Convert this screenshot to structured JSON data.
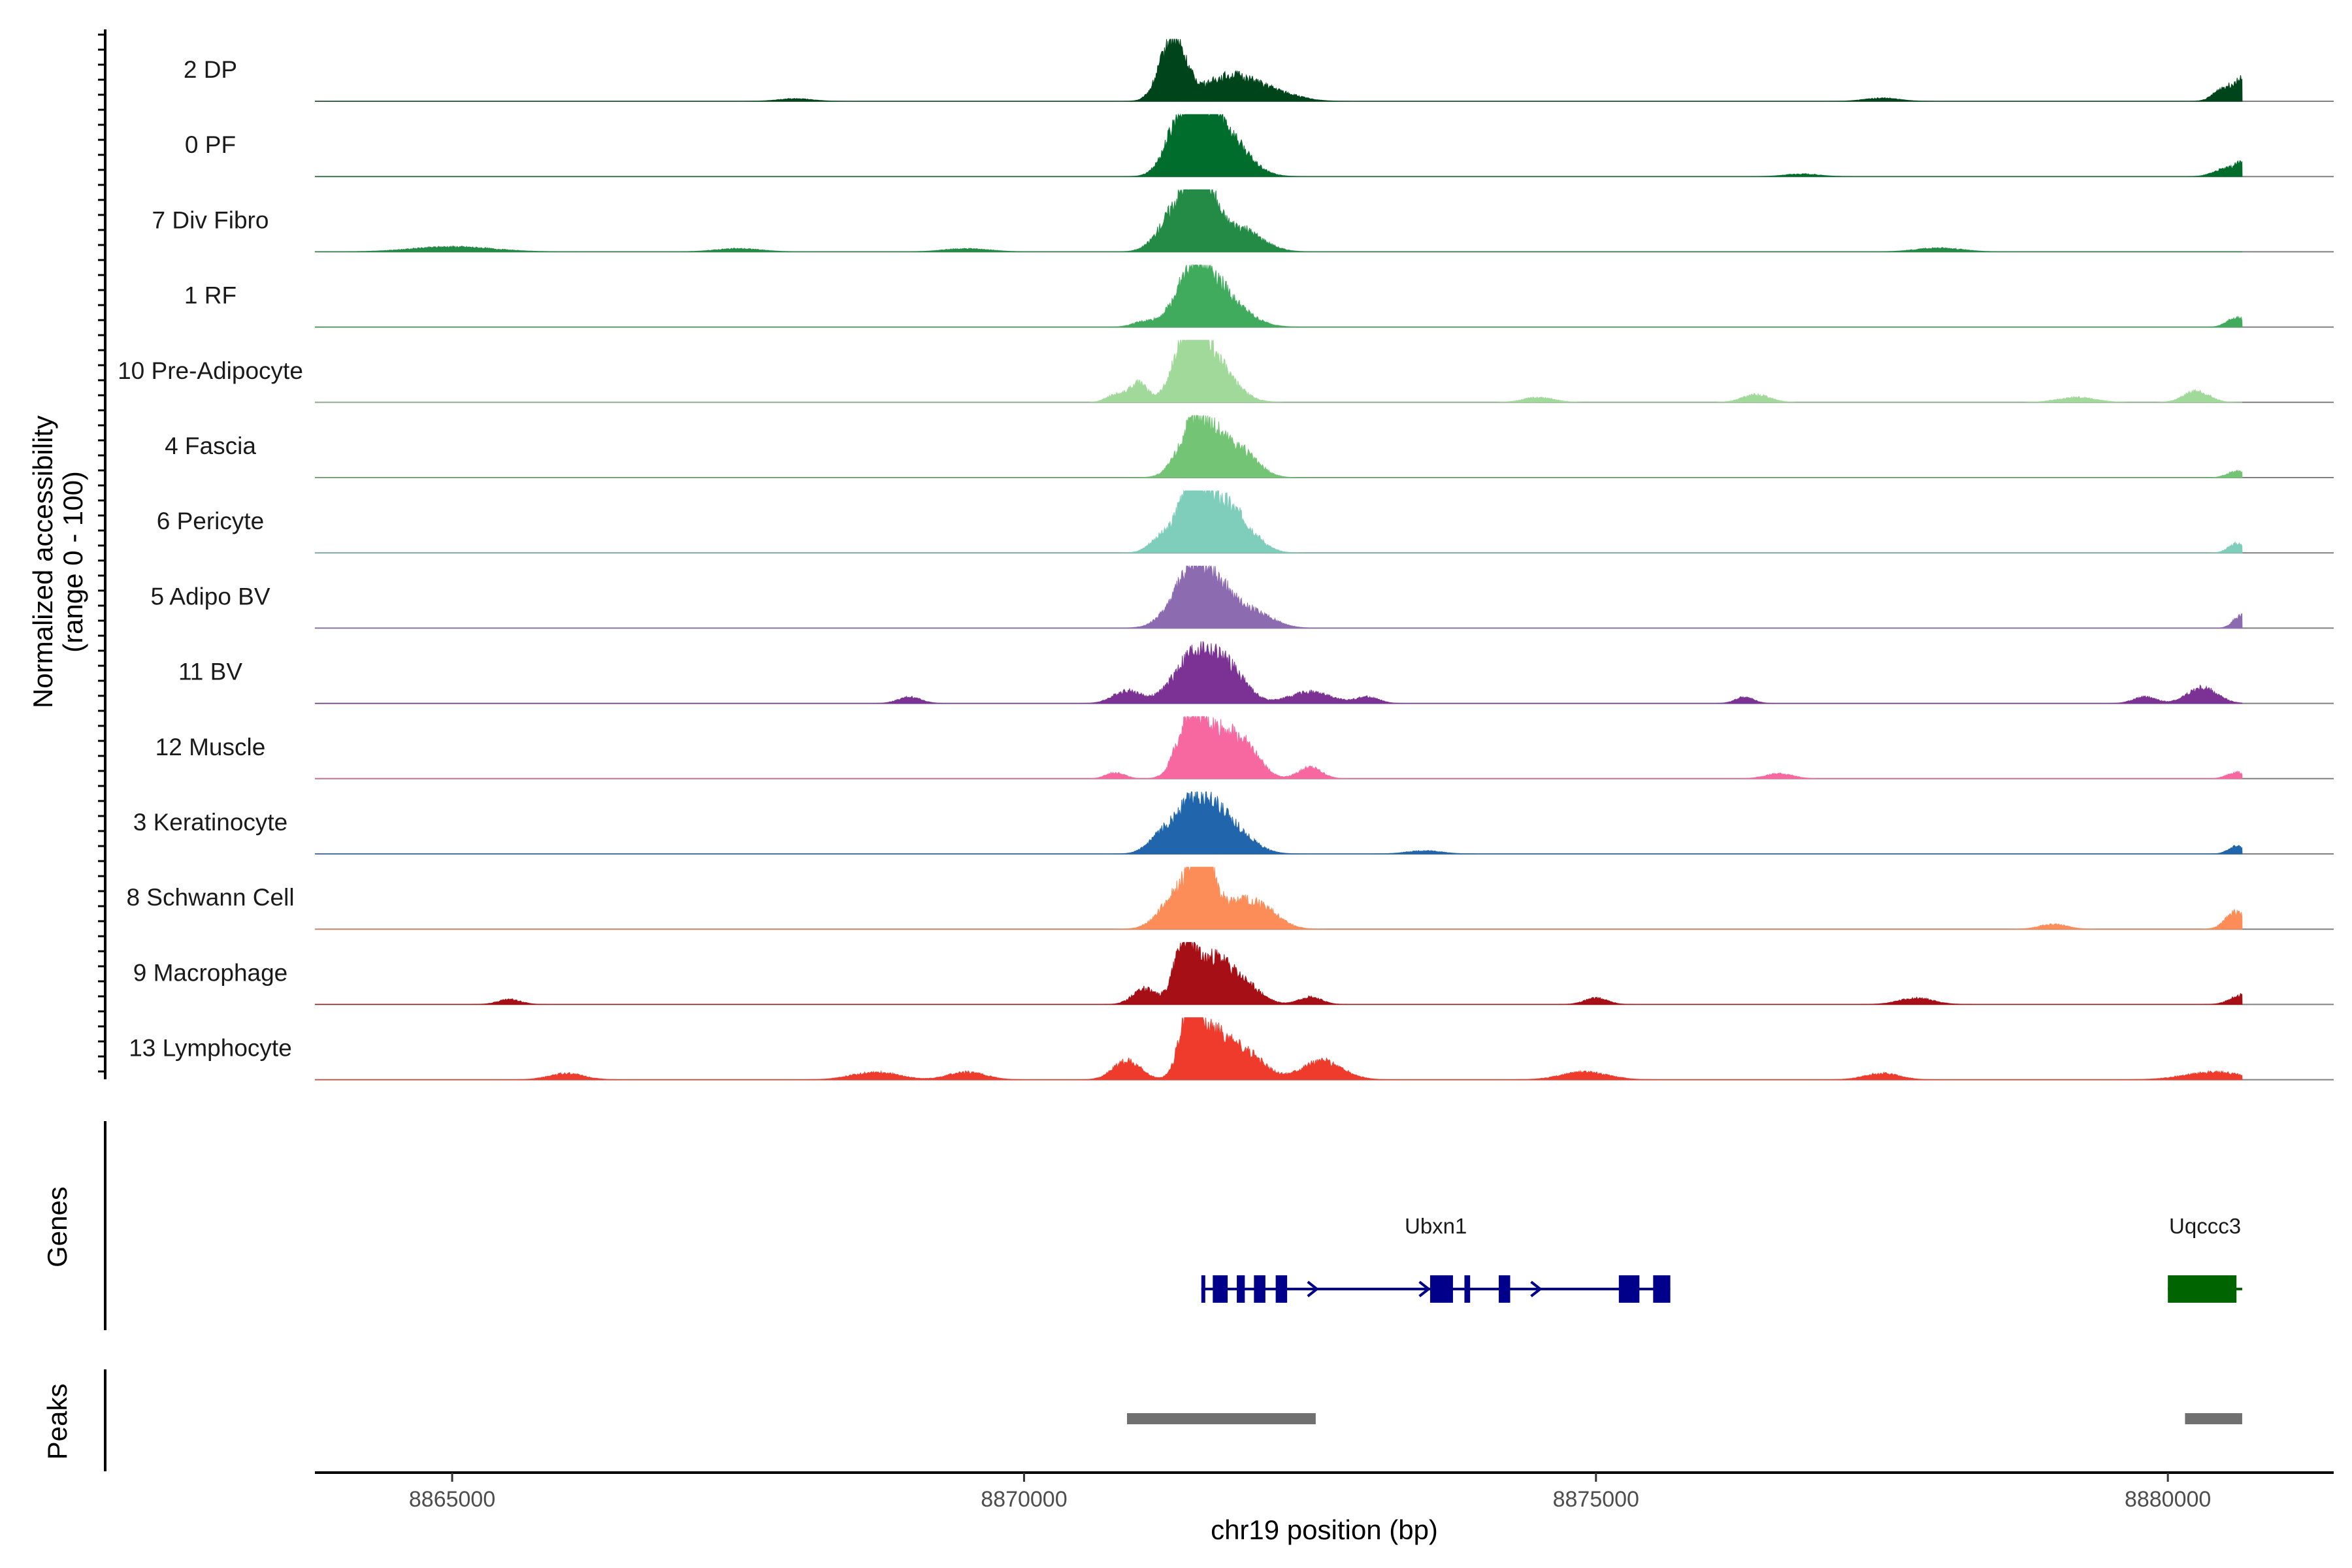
{
  "chart_data": {
    "type": "area",
    "title": "",
    "ylabel_line1": "Normalized accessibility",
    "ylabel_line2": "(range 0 - 100)",
    "xlabel": "chr19 position (bp)",
    "xlim": [
      8863800,
      8881450
    ],
    "ylim": [
      0,
      100
    ],
    "x_ticks": [
      8865000,
      8870000,
      8875000,
      8880000
    ],
    "x_tick_labels": [
      "8865000",
      "8870000",
      "8875000",
      "8880000"
    ],
    "tracks": [
      {
        "name": "2 DP",
        "color": "#00441b",
        "peaks": [
          [
            8871300,
            100,
            110
          ],
          [
            8871800,
            40,
            220
          ],
          [
            8872200,
            12,
            200
          ],
          [
            8880500,
            22,
            90
          ],
          [
            8880650,
            30,
            60
          ],
          [
            8877500,
            5,
            150
          ],
          [
            8868000,
            4,
            150
          ]
        ]
      },
      {
        "name": "0 PF",
        "color": "#006d2c",
        "peaks": [
          [
            8871550,
            95,
            170
          ],
          [
            8871350,
            55,
            120
          ],
          [
            8871800,
            45,
            180
          ],
          [
            8880500,
            12,
            100
          ],
          [
            8880650,
            18,
            60
          ],
          [
            8876800,
            4,
            150
          ]
        ]
      },
      {
        "name": "7 Div Fibro",
        "color": "#238b45",
        "peaks": [
          [
            8871550,
            100,
            110
          ],
          [
            8871350,
            70,
            150
          ],
          [
            8871850,
            40,
            200
          ],
          [
            8865000,
            8,
            350
          ],
          [
            8867500,
            5,
            200
          ],
          [
            8869500,
            5,
            200
          ],
          [
            8878000,
            6,
            200
          ]
        ]
      },
      {
        "name": "1 RF",
        "color": "#41ab5d",
        "peaks": [
          [
            8871500,
            90,
            160
          ],
          [
            8871750,
            40,
            200
          ],
          [
            8880600,
            15,
            80
          ],
          [
            8871050,
            8,
            100
          ]
        ]
      },
      {
        "name": "10 Pre-Adipocyte",
        "color": "#a1d99b",
        "peaks": [
          [
            8871450,
            100,
            130
          ],
          [
            8871650,
            60,
            180
          ],
          [
            8871000,
            30,
            80
          ],
          [
            8870800,
            12,
            80
          ],
          [
            8880250,
            18,
            110
          ],
          [
            8876400,
            12,
            120
          ],
          [
            8874500,
            8,
            130
          ],
          [
            8879200,
            8,
            160
          ]
        ]
      },
      {
        "name": "4 Fascia",
        "color": "#74c476",
        "peaks": [
          [
            8871500,
            85,
            140
          ],
          [
            8871750,
            45,
            160
          ],
          [
            8871950,
            20,
            140
          ],
          [
            8880600,
            10,
            80
          ]
        ]
      },
      {
        "name": "6 Pericyte",
        "color": "#7fcdbb",
        "peaks": [
          [
            8871450,
            100,
            100
          ],
          [
            8871650,
            75,
            150
          ],
          [
            8871900,
            40,
            150
          ],
          [
            8871200,
            25,
            100
          ],
          [
            8880600,
            15,
            70
          ]
        ]
      },
      {
        "name": "5 Adipo BV",
        "color": "#8c6bb1",
        "peaks": [
          [
            8871500,
            95,
            180
          ],
          [
            8871800,
            35,
            200
          ],
          [
            8872100,
            10,
            150
          ],
          [
            8880650,
            22,
            70
          ]
        ]
      },
      {
        "name": "11 BV",
        "color": "#7b3294",
        "peaks": [
          [
            8871500,
            80,
            180
          ],
          [
            8871800,
            45,
            150
          ],
          [
            8870900,
            20,
            120
          ],
          [
            8872500,
            18,
            180
          ],
          [
            8880300,
            25,
            130
          ],
          [
            8873000,
            10,
            100
          ],
          [
            8869000,
            10,
            100
          ],
          [
            8876300,
            10,
            80
          ],
          [
            8879800,
            10,
            100
          ]
        ]
      },
      {
        "name": "12 Muscle",
        "color": "#f768a1",
        "peaks": [
          [
            8871450,
            95,
            110
          ],
          [
            8871700,
            70,
            150
          ],
          [
            8871950,
            40,
            130
          ],
          [
            8872500,
            18,
            100
          ],
          [
            8870800,
            10,
            80
          ],
          [
            8876600,
            8,
            120
          ],
          [
            8880600,
            10,
            80
          ]
        ]
      },
      {
        "name": "3 Keratinocyte",
        "color": "#2166ac",
        "peaks": [
          [
            8871500,
            85,
            170
          ],
          [
            8871800,
            40,
            180
          ],
          [
            8871200,
            20,
            120
          ],
          [
            8880600,
            12,
            70
          ],
          [
            8873500,
            5,
            150
          ]
        ]
      },
      {
        "name": "8 Schwann Cell",
        "color": "#fc8d59",
        "peaks": [
          [
            8871550,
            100,
            100
          ],
          [
            8871350,
            55,
            150
          ],
          [
            8871850,
            40,
            200
          ],
          [
            8872100,
            20,
            150
          ],
          [
            8880600,
            28,
            90
          ],
          [
            8879000,
            8,
            120
          ]
        ]
      },
      {
        "name": "9 Macrophage",
        "color": "#a50f15",
        "peaks": [
          [
            8871400,
            100,
            90
          ],
          [
            8871650,
            65,
            130
          ],
          [
            8871900,
            35,
            150
          ],
          [
            8871050,
            25,
            100
          ],
          [
            8872500,
            12,
            100
          ],
          [
            8880650,
            15,
            100
          ],
          [
            8875000,
            10,
            100
          ],
          [
            8877800,
            10,
            150
          ],
          [
            8865500,
            8,
            100
          ]
        ]
      },
      {
        "name": "13 Lymphocyte",
        "color": "#ef3b2c",
        "peaks": [
          [
            8871450,
            100,
            90
          ],
          [
            8871650,
            70,
            140
          ],
          [
            8871950,
            40,
            150
          ],
          [
            8870900,
            30,
            120
          ],
          [
            8872600,
            30,
            180
          ],
          [
            8866000,
            10,
            150
          ],
          [
            8868700,
            12,
            200
          ],
          [
            8869500,
            12,
            160
          ],
          [
            8874900,
            12,
            200
          ],
          [
            8877500,
            10,
            150
          ],
          [
            8880400,
            12,
            250
          ]
        ]
      }
    ],
    "genes_track_label": "Genes",
    "genes": [
      {
        "name": "Ubxn1",
        "color": "#00008b",
        "start": 8871550,
        "end": 8875650,
        "strand": "+",
        "exons": [
          [
            8871550,
            8871570
          ],
          [
            8871650,
            8871780
          ],
          [
            8871860,
            8871930
          ],
          [
            8872010,
            8872110
          ],
          [
            8872200,
            8872300
          ],
          [
            8873550,
            8873750
          ],
          [
            8873850,
            8873900
          ],
          [
            8874150,
            8874250
          ],
          [
            8875200,
            8875380
          ],
          [
            8875500,
            8875650
          ]
        ]
      },
      {
        "name": "Uqccc3",
        "color": "#006400",
        "start": 8880000,
        "end": 8880650,
        "strand": "+",
        "exons": [
          [
            8880000,
            8880600
          ]
        ]
      }
    ],
    "peaks_track_label": "Peaks",
    "peak_regions": [
      {
        "start": 8870900,
        "end": 8872550,
        "color": "#707070"
      },
      {
        "start": 8880150,
        "end": 8880650,
        "color": "#707070"
      }
    ]
  }
}
